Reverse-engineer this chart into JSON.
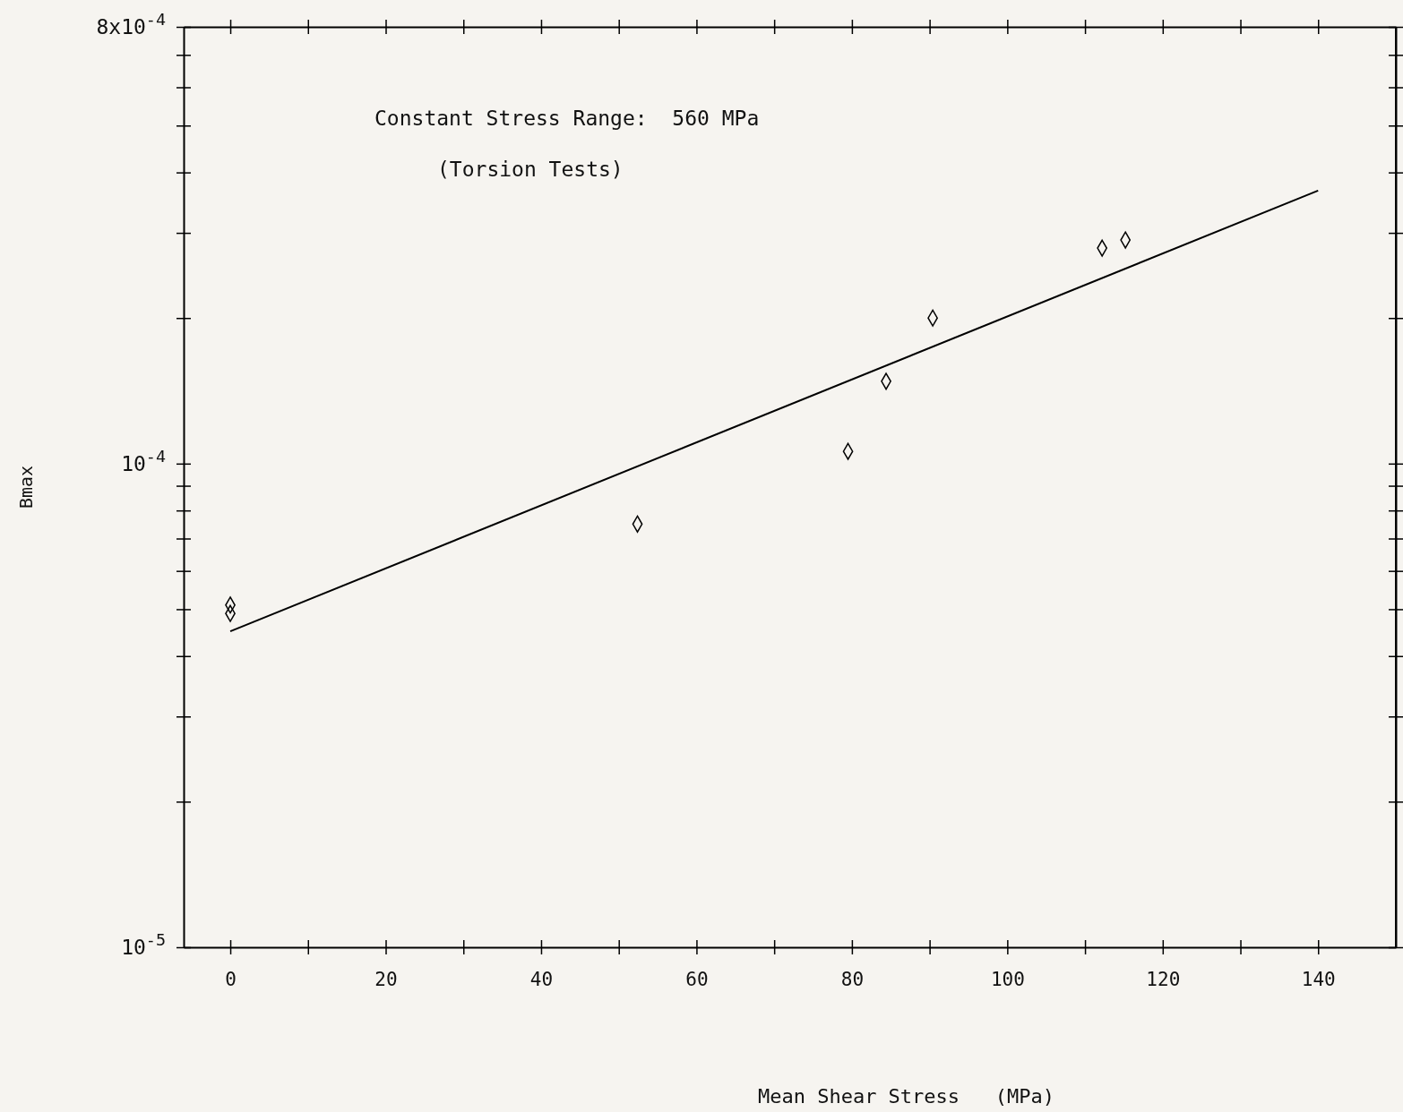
{
  "chart_data": {
    "type": "scatter",
    "xlabel": "Mean Shear Stress   (MPa)",
    "ylabel": "Bmax",
    "annotations": [
      "Constant Stress Range:  560 MPa",
      "(Torsion Tests)"
    ],
    "log": "y",
    "grid": false,
    "marker": "diamond",
    "xlim": [
      -6,
      150
    ],
    "xticks": [
      0,
      20,
      40,
      60,
      80,
      100,
      120,
      140,
      {
        "value": 10,
        "label": null
      },
      {
        "value": 30,
        "label": null
      },
      {
        "value": 50,
        "label": null
      },
      {
        "value": 70,
        "label": null
      },
      {
        "value": 90,
        "label": null
      },
      {
        "value": 110,
        "label": null
      },
      {
        "value": 130,
        "label": null
      }
    ],
    "ylim": [
      1e-05,
      0.0008
    ],
    "yticks": [
      {
        "value": 1e-05,
        "label": "10$^{-5}$"
      },
      {
        "value": 2e-05,
        "label": null
      },
      {
        "value": 3e-05,
        "label": null
      },
      {
        "value": 4e-05,
        "label": null
      },
      {
        "value": 5e-05,
        "label": null
      },
      {
        "value": 6e-05,
        "label": null
      },
      {
        "value": 7e-05,
        "label": null
      },
      {
        "value": 8e-05,
        "label": null
      },
      {
        "value": 9e-05,
        "label": null
      },
      {
        "value": 0.0001,
        "label": "10$^{-4}$"
      },
      {
        "value": 0.0002,
        "label": null
      },
      {
        "value": 0.0003,
        "label": null
      },
      {
        "value": 0.0004,
        "label": null
      },
      {
        "value": 0.0005,
        "label": null
      },
      {
        "value": 0.0006,
        "label": null
      },
      {
        "value": 0.0007,
        "label": null
      },
      {
        "value": 0.0008,
        "label": "8x10$^{-4}$"
      }
    ],
    "series": [
      {
        "type": "scatter",
        "color": "#000000",
        "x": [
          0,
          0,
          52.4,
          79.5,
          84.4,
          90.4,
          112.2,
          115.2
        ],
        "values": [
          5.1e-05,
          4.9e-05,
          7.5e-05,
          0.000106,
          0.000148,
          0.0002,
          0.000279,
          0.00029
        ]
      },
      {
        "type": "line",
        "color": "#000000",
        "marker": "none",
        "x": [
          0,
          140
        ],
        "values": [
          4.5e-05,
          0.000367
        ]
      }
    ]
  }
}
